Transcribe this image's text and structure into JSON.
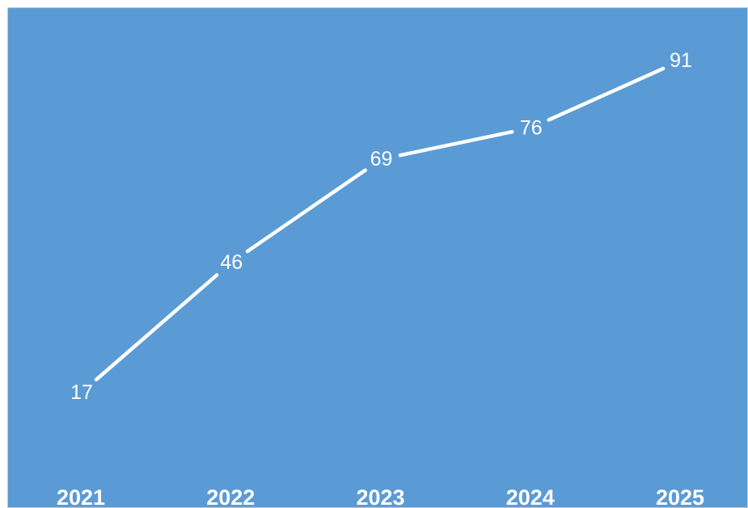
{
  "colors": {
    "background": "#5b9bd5",
    "frame": "#c9c9c9",
    "line": "#ffffff",
    "text": "#ffffff"
  },
  "chart_data": {
    "type": "line",
    "title": "",
    "xlabel": "",
    "ylabel": "",
    "categories": [
      "2021",
      "2022",
      "2023",
      "2024",
      "2025"
    ],
    "series": [
      {
        "values": [
          17,
          46,
          69,
          76,
          91
        ]
      }
    ],
    "ylim": [
      0,
      100
    ],
    "grid": false,
    "legend": "none",
    "data_labels": true,
    "drop_lines": true
  }
}
